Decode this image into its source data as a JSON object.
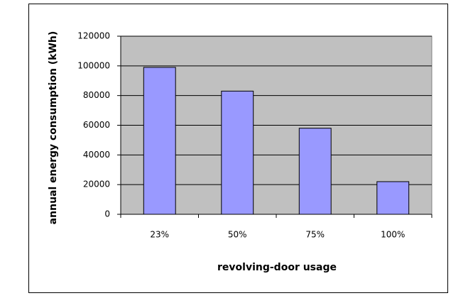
{
  "chart_data": {
    "type": "bar",
    "x_label": "revolving-door usage",
    "y_label": "annual energy consumption (kWh)",
    "categories": [
      "23%",
      "50%",
      "75%",
      "100%"
    ],
    "values": [
      99000,
      83000,
      58000,
      22000
    ],
    "color": "#9999ff",
    "ylim": [
      0,
      120000
    ],
    "yticks": [
      0,
      20000,
      40000,
      60000,
      80000,
      100000,
      120000
    ],
    "grid": true
  }
}
